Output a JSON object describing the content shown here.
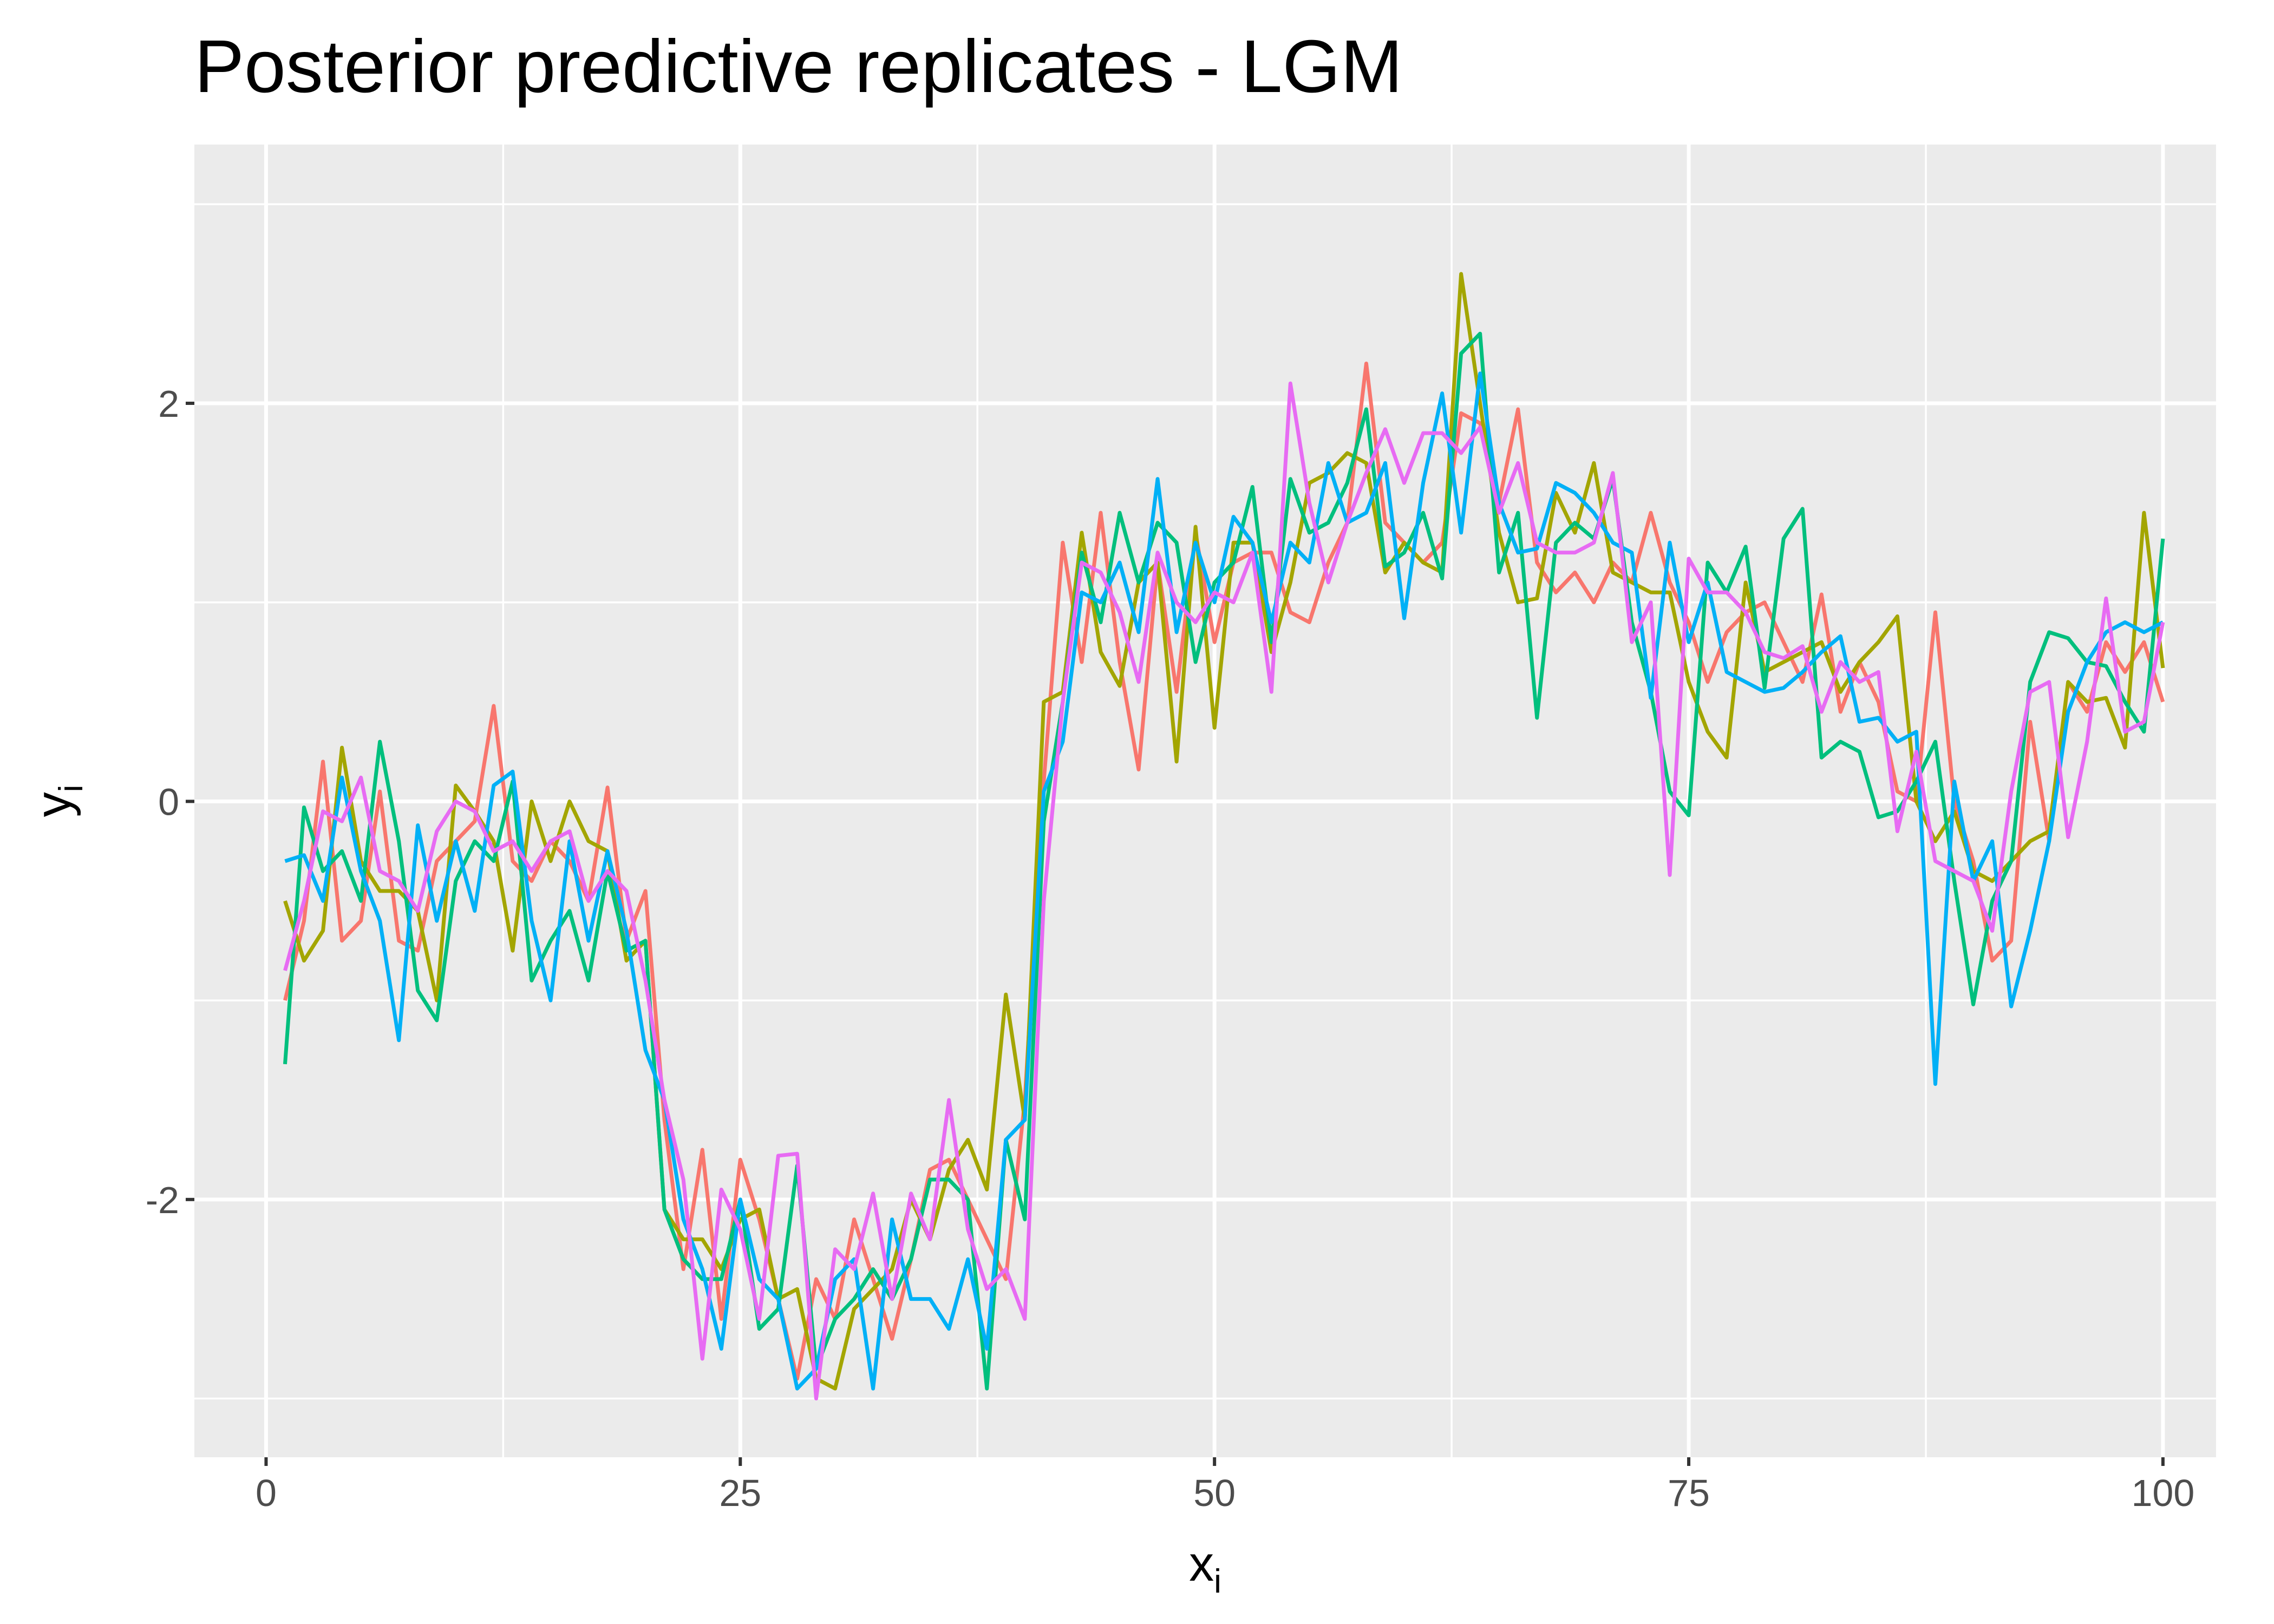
{
  "chart_data": {
    "type": "line",
    "title": "Posterior predictive replicates - LGM",
    "xlabel": {
      "text": "x",
      "subscript": "i"
    },
    "ylabel": {
      "text": "y",
      "subscript": "i"
    },
    "x": [
      1,
      2,
      3,
      4,
      5,
      6,
      7,
      8,
      9,
      10,
      11,
      12,
      13,
      14,
      15,
      16,
      17,
      18,
      19,
      20,
      21,
      22,
      23,
      24,
      25,
      26,
      27,
      28,
      29,
      30,
      31,
      32,
      33,
      34,
      35,
      36,
      37,
      38,
      39,
      40,
      41,
      42,
      43,
      44,
      45,
      46,
      47,
      48,
      49,
      50,
      51,
      52,
      53,
      54,
      55,
      56,
      57,
      58,
      59,
      60,
      61,
      62,
      63,
      64,
      65,
      66,
      67,
      68,
      69,
      70,
      71,
      72,
      73,
      74,
      75,
      76,
      77,
      78,
      79,
      80,
      81,
      82,
      83,
      84,
      85,
      86,
      87,
      88,
      89,
      90,
      91,
      92,
      93,
      94,
      95,
      96,
      97,
      98,
      99,
      100
    ],
    "series": [
      {
        "color": "#F8766D",
        "values": [
          -1.0,
          -0.6,
          0.2,
          -0.7,
          -0.6,
          0.05,
          -0.7,
          -0.75,
          -0.3,
          -0.2,
          -0.1,
          0.48,
          -0.3,
          -0.4,
          -0.2,
          -0.3,
          -0.5,
          0.07,
          -0.7,
          -0.45,
          -1.6,
          -2.35,
          -1.75,
          -2.6,
          -1.8,
          -2.1,
          -2.5,
          -2.9,
          -2.4,
          -2.6,
          -2.1,
          -2.4,
          -2.7,
          -2.3,
          -1.85,
          -1.8,
          -2.0,
          -2.2,
          -2.4,
          -1.5,
          0.1,
          1.3,
          0.7,
          1.45,
          0.7,
          0.16,
          1.2,
          0.55,
          1.35,
          0.8,
          1.2,
          1.25,
          1.25,
          0.95,
          0.9,
          1.2,
          1.4,
          2.2,
          1.4,
          1.3,
          1.2,
          1.3,
          1.95,
          1.9,
          1.5,
          1.97,
          1.2,
          1.05,
          1.15,
          1.0,
          1.2,
          1.1,
          1.45,
          1.1,
          0.9,
          0.6,
          0.85,
          0.95,
          1.0,
          0.8,
          0.6,
          1.04,
          0.45,
          0.7,
          0.5,
          0.05,
          0.0,
          0.95,
          0.0,
          -0.3,
          -0.8,
          -0.7,
          0.4,
          -0.2,
          0.6,
          0.45,
          0.8,
          0.65,
          0.8,
          0.5
        ]
      },
      {
        "color": "#A3A500",
        "values": [
          -0.5,
          -0.8,
          -0.65,
          0.27,
          -0.3,
          -0.45,
          -0.45,
          -0.55,
          -1.0,
          0.08,
          -0.05,
          -0.2,
          -0.75,
          0.0,
          -0.3,
          0.0,
          -0.2,
          -0.25,
          -0.8,
          -0.7,
          -2.05,
          -2.2,
          -2.2,
          -2.35,
          -2.1,
          -2.05,
          -2.5,
          -2.45,
          -2.9,
          -2.95,
          -2.55,
          -2.45,
          -2.35,
          -2.0,
          -2.2,
          -1.85,
          -1.7,
          -1.95,
          -0.97,
          -1.6,
          0.5,
          0.55,
          1.35,
          0.75,
          0.58,
          1.1,
          1.2,
          0.2,
          1.38,
          0.37,
          1.3,
          1.3,
          0.75,
          1.1,
          1.6,
          1.65,
          1.75,
          1.7,
          1.15,
          1.3,
          1.2,
          1.15,
          2.65,
          2.0,
          1.35,
          1.0,
          1.02,
          1.55,
          1.35,
          1.7,
          1.15,
          1.1,
          1.05,
          1.05,
          0.6,
          0.35,
          0.22,
          1.1,
          0.65,
          0.7,
          0.75,
          0.8,
          0.55,
          0.7,
          0.8,
          0.93,
          0.0,
          -0.2,
          -0.05,
          -0.35,
          -0.4,
          -0.3,
          -0.2,
          -0.15,
          0.6,
          0.5,
          0.52,
          0.27,
          1.45,
          0.67
        ]
      },
      {
        "color": "#00BF7D",
        "values": [
          -1.32,
          -0.03,
          -0.35,
          -0.25,
          -0.5,
          0.3,
          -0.2,
          -0.95,
          -1.1,
          -0.4,
          -0.2,
          -0.3,
          0.1,
          -0.9,
          -0.7,
          -0.55,
          -0.9,
          -0.35,
          -0.75,
          -0.7,
          -2.05,
          -2.3,
          -2.4,
          -2.4,
          -2.0,
          -2.65,
          -2.55,
          -1.83,
          -2.85,
          -2.6,
          -2.5,
          -2.35,
          -2.5,
          -2.3,
          -1.9,
          -1.9,
          -2.0,
          -2.95,
          -1.7,
          -2.1,
          -0.1,
          0.5,
          1.25,
          0.9,
          1.45,
          1.1,
          1.4,
          1.3,
          0.7,
          1.1,
          1.2,
          1.58,
          0.8,
          1.62,
          1.35,
          1.4,
          1.6,
          1.97,
          1.18,
          1.25,
          1.45,
          1.12,
          2.25,
          2.35,
          1.15,
          1.45,
          0.42,
          1.3,
          1.4,
          1.32,
          1.62,
          0.9,
          0.55,
          0.05,
          -0.07,
          1.2,
          1.05,
          1.28,
          0.57,
          1.32,
          1.47,
          0.22,
          0.3,
          0.25,
          -0.08,
          -0.05,
          0.1,
          0.3,
          -0.4,
          -1.02,
          -0.5,
          -0.3,
          0.6,
          0.85,
          0.82,
          0.7,
          0.68,
          0.5,
          0.35,
          1.32
        ]
      },
      {
        "color": "#00B0F6",
        "values": [
          -0.3,
          -0.27,
          -0.5,
          0.12,
          -0.35,
          -0.6,
          -1.2,
          -0.12,
          -0.6,
          -0.2,
          -0.55,
          0.08,
          0.15,
          -0.6,
          -1.0,
          -0.2,
          -0.7,
          -0.25,
          -0.65,
          -1.25,
          -1.5,
          -2.1,
          -2.35,
          -2.75,
          -2.0,
          -2.4,
          -2.5,
          -2.95,
          -2.85,
          -2.4,
          -2.3,
          -2.95,
          -2.1,
          -2.5,
          -2.5,
          -2.65,
          -2.3,
          -2.75,
          -1.7,
          -1.6,
          0.05,
          0.3,
          1.05,
          1.0,
          1.2,
          0.85,
          1.62,
          0.85,
          1.3,
          1.0,
          1.43,
          1.3,
          0.9,
          1.3,
          1.2,
          1.7,
          1.4,
          1.45,
          1.7,
          0.92,
          1.6,
          2.05,
          1.35,
          2.15,
          1.5,
          1.25,
          1.27,
          1.6,
          1.55,
          1.45,
          1.3,
          1.25,
          0.52,
          1.3,
          0.8,
          1.1,
          0.65,
          0.6,
          0.55,
          0.57,
          0.65,
          0.75,
          0.83,
          0.4,
          0.42,
          0.3,
          0.35,
          -1.42,
          0.1,
          -0.4,
          -0.2,
          -1.03,
          -0.65,
          -0.2,
          0.45,
          0.7,
          0.85,
          0.9,
          0.85,
          0.9
        ]
      },
      {
        "color": "#E76BF3",
        "values": [
          -0.85,
          -0.5,
          -0.05,
          -0.1,
          0.12,
          -0.35,
          -0.4,
          -0.55,
          -0.15,
          0.0,
          -0.05,
          -0.25,
          -0.2,
          -0.35,
          -0.2,
          -0.15,
          -0.5,
          -0.35,
          -0.45,
          -0.9,
          -1.5,
          -1.9,
          -2.8,
          -1.95,
          -2.15,
          -2.6,
          -1.78,
          -1.77,
          -3.0,
          -2.25,
          -2.35,
          -1.97,
          -2.5,
          -1.97,
          -2.2,
          -1.5,
          -2.15,
          -2.45,
          -2.35,
          -2.6,
          -0.5,
          0.5,
          1.2,
          1.15,
          0.95,
          0.6,
          1.25,
          1.0,
          0.9,
          1.05,
          1.0,
          1.25,
          0.55,
          2.1,
          1.5,
          1.1,
          1.4,
          1.65,
          1.87,
          1.6,
          1.85,
          1.85,
          1.75,
          1.88,
          1.45,
          1.7,
          1.3,
          1.25,
          1.25,
          1.3,
          1.65,
          0.8,
          1.0,
          -0.37,
          1.22,
          1.05,
          1.05,
          0.95,
          0.75,
          0.72,
          0.78,
          0.45,
          0.7,
          0.6,
          0.65,
          -0.15,
          0.25,
          -0.3,
          -0.35,
          -0.4,
          -0.65,
          0.05,
          0.55,
          0.6,
          -0.18,
          0.3,
          1.02,
          0.35,
          0.4,
          0.9
        ]
      }
    ],
    "xlim": [
      -3.78,
      102.8
    ],
    "ylim": [
      -3.295,
      3.3
    ],
    "xticks": [
      0,
      25,
      50,
      75,
      100
    ],
    "yticks": [
      -2,
      0,
      2
    ],
    "grid": true,
    "panel_color": "#EBEBEB"
  }
}
